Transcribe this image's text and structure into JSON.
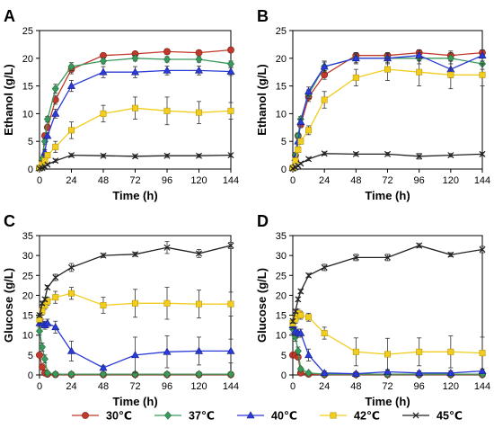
{
  "colors": {
    "30": "#c0392b",
    "37": "#3a9a5b",
    "40": "#2b3bd6",
    "42": "#f2cd1d",
    "45": "#222222"
  },
  "legend": [
    {
      "key": "30",
      "label": "30℃",
      "marker": "circle"
    },
    {
      "key": "37",
      "label": "37℃",
      "marker": "diamond"
    },
    {
      "key": "40",
      "label": "40℃",
      "marker": "triangle"
    },
    {
      "key": "42",
      "label": "42℃",
      "marker": "square"
    },
    {
      "key": "45",
      "label": "45℃",
      "marker": "x"
    }
  ],
  "chart_data": [
    {
      "type": "line",
      "panel": "A",
      "xlabel": "Time (h)",
      "ylabel": "Ethanol (g/L)",
      "xlim": [
        0,
        144
      ],
      "ylim": [
        0,
        25
      ],
      "xticks": [
        0,
        24,
        48,
        72,
        96,
        120,
        144
      ],
      "yticks": [
        0,
        5,
        10,
        15,
        20,
        25
      ],
      "x": [
        0,
        2,
        4,
        6,
        12,
        24,
        48,
        72,
        96,
        120,
        144
      ],
      "series": [
        {
          "key": "30",
          "name": "30℃",
          "values": [
            0.2,
            1.5,
            6.0,
            7.5,
            12.5,
            18.0,
            20.5,
            20.8,
            21.2,
            21.0,
            21.5
          ],
          "err": [
            0.1,
            0.3,
            0.5,
            0.5,
            0.8,
            0.8,
            0.3,
            0.4,
            0.5,
            0.4,
            0.3
          ]
        },
        {
          "key": "37",
          "name": "37℃",
          "values": [
            0.2,
            1.8,
            5.0,
            9.0,
            14.5,
            18.5,
            19.5,
            20.0,
            19.8,
            19.8,
            19.0
          ],
          "err": [
            0.1,
            0.3,
            0.5,
            0.5,
            0.8,
            0.7,
            0.5,
            0.5,
            0.5,
            0.5,
            0.5
          ]
        },
        {
          "key": "40",
          "name": "40℃",
          "values": [
            0.2,
            1.0,
            3.0,
            6.0,
            10.0,
            15.0,
            17.5,
            17.5,
            17.8,
            17.8,
            17.6
          ],
          "err": [
            0.1,
            0.3,
            0.5,
            0.5,
            0.8,
            1.0,
            1.0,
            1.0,
            0.8,
            0.8,
            0.7
          ]
        },
        {
          "key": "42",
          "name": "42℃",
          "values": [
            0.2,
            0.8,
            1.5,
            2.5,
            4.0,
            7.0,
            10.0,
            11.0,
            10.5,
            10.2,
            10.5
          ],
          "err": [
            0.1,
            0.3,
            0.5,
            0.5,
            1.0,
            1.5,
            1.5,
            2.0,
            2.5,
            2.0,
            1.5
          ]
        },
        {
          "key": "45",
          "name": "45℃",
          "values": [
            0.1,
            0.2,
            0.4,
            0.8,
            1.5,
            2.5,
            2.4,
            2.3,
            2.4,
            2.4,
            2.5
          ],
          "err": [
            0.1,
            0.1,
            0.2,
            0.2,
            0.3,
            0.3,
            0.3,
            0.3,
            0.3,
            0.3,
            0.3
          ]
        }
      ]
    },
    {
      "type": "line",
      "panel": "B",
      "xlabel": "Time (h)",
      "ylabel": "Ethanol (g/L)",
      "xlim": [
        0,
        144
      ],
      "ylim": [
        0,
        25
      ],
      "xticks": [
        0,
        24,
        48,
        72,
        96,
        120,
        144
      ],
      "yticks": [
        0,
        5,
        10,
        15,
        20,
        25
      ],
      "x": [
        0,
        2,
        4,
        6,
        12,
        24,
        48,
        72,
        96,
        120,
        144
      ],
      "series": [
        {
          "key": "30",
          "name": "30℃",
          "values": [
            0.2,
            2.5,
            6.0,
            8.0,
            13.0,
            17.0,
            20.5,
            20.5,
            21.0,
            20.5,
            21.0
          ],
          "err": [
            0.1,
            0.3,
            0.5,
            0.5,
            0.8,
            0.8,
            0.5,
            0.5,
            0.5,
            0.8,
            0.5
          ]
        },
        {
          "key": "37",
          "name": "37℃",
          "values": [
            0.2,
            2.5,
            6.0,
            9.0,
            13.5,
            18.5,
            20.0,
            20.0,
            20.0,
            20.0,
            19.0
          ],
          "err": [
            0.1,
            0.3,
            0.5,
            0.5,
            0.8,
            0.8,
            0.8,
            0.8,
            1.0,
            1.0,
            1.0
          ]
        },
        {
          "key": "40",
          "name": "40℃",
          "values": [
            0.2,
            2.0,
            5.0,
            8.5,
            14.0,
            18.5,
            20.0,
            20.0,
            20.5,
            18.0,
            20.5
          ],
          "err": [
            0.1,
            0.3,
            0.5,
            0.5,
            0.8,
            1.0,
            1.0,
            1.0,
            1.0,
            1.5,
            1.0
          ]
        },
        {
          "key": "42",
          "name": "42℃",
          "values": [
            0.2,
            1.5,
            3.5,
            5.0,
            7.0,
            12.5,
            16.5,
            18.0,
            17.5,
            17.0,
            17.0
          ],
          "err": [
            0.1,
            0.3,
            0.5,
            0.5,
            0.8,
            1.5,
            1.5,
            2.0,
            2.5,
            2.5,
            2.0
          ]
        },
        {
          "key": "45",
          "name": "45℃",
          "values": [
            0.1,
            0.3,
            0.6,
            1.0,
            1.8,
            2.8,
            2.7,
            2.7,
            2.3,
            2.5,
            2.7
          ],
          "err": [
            0.1,
            0.1,
            0.2,
            0.2,
            0.3,
            0.3,
            0.3,
            0.3,
            0.5,
            0.3,
            0.3
          ]
        }
      ]
    },
    {
      "type": "line",
      "panel": "C",
      "xlabel": "Time (h)",
      "ylabel": "Glucose (g/L)",
      "xlim": [
        0,
        144
      ],
      "ylim": [
        0,
        35
      ],
      "xticks": [
        0,
        24,
        48,
        72,
        96,
        120,
        144
      ],
      "yticks": [
        0,
        5,
        10,
        15,
        20,
        25,
        30,
        35
      ],
      "x": [
        0,
        2,
        4,
        6,
        12,
        24,
        48,
        72,
        96,
        120,
        144
      ],
      "series": [
        {
          "key": "30",
          "name": "30℃",
          "values": [
            5.0,
            2.0,
            0.5,
            0.2,
            0.1,
            0.1,
            0.1,
            0.1,
            0.1,
            0.1,
            0.1
          ],
          "err": [
            0.5,
            0.5,
            0.3,
            0.1,
            0.1,
            0.1,
            0.1,
            0.1,
            0.1,
            0.1,
            0.1
          ]
        },
        {
          "key": "37",
          "name": "37℃",
          "values": [
            11.0,
            7.0,
            4.0,
            0.5,
            0.2,
            0.2,
            0.2,
            0.2,
            0.2,
            0.2,
            0.2
          ],
          "err": [
            1.0,
            1.0,
            1.0,
            0.3,
            0.1,
            0.1,
            0.1,
            0.1,
            0.1,
            0.1,
            0.1
          ]
        },
        {
          "key": "40",
          "name": "40℃",
          "values": [
            13.0,
            13.0,
            12.5,
            13.0,
            12.0,
            6.0,
            1.8,
            5.0,
            5.8,
            6.0,
            6.0
          ],
          "err": [
            1.0,
            1.0,
            1.0,
            1.0,
            1.5,
            2.5,
            0.5,
            4.5,
            4.0,
            3.5,
            3.0
          ]
        },
        {
          "key": "42",
          "name": "42℃",
          "values": [
            14.0,
            16.0,
            17.5,
            18.5,
            19.5,
            20.5,
            17.5,
            18.0,
            18.0,
            17.8,
            17.8
          ],
          "err": [
            1.0,
            1.0,
            1.0,
            1.0,
            1.5,
            1.5,
            2.0,
            3.5,
            4.0,
            3.5,
            3.0
          ]
        },
        {
          "key": "45",
          "name": "45℃",
          "values": [
            15.0,
            18.0,
            19.0,
            22.0,
            24.5,
            27.0,
            30.0,
            30.3,
            32.0,
            30.5,
            32.5
          ],
          "err": [
            0.5,
            0.5,
            0.5,
            0.5,
            0.8,
            1.0,
            0.5,
            0.5,
            1.5,
            1.0,
            0.8
          ]
        }
      ]
    },
    {
      "type": "line",
      "panel": "D",
      "xlabel": "Time (h)",
      "ylabel": "Glucose (g/L)",
      "xlim": [
        0,
        144
      ],
      "ylim": [
        0,
        35
      ],
      "xticks": [
        0,
        24,
        48,
        72,
        96,
        120,
        144
      ],
      "yticks": [
        0,
        5,
        10,
        15,
        20,
        25,
        30,
        35
      ],
      "x": [
        0,
        2,
        4,
        6,
        12,
        24,
        48,
        72,
        96,
        120,
        144
      ],
      "series": [
        {
          "key": "30",
          "name": "30℃",
          "values": [
            5.0,
            5.0,
            4.5,
            0.5,
            0.2,
            0.1,
            0.1,
            0.1,
            0.1,
            0.1,
            0.1
          ],
          "err": [
            0.5,
            0.5,
            0.5,
            0.3,
            0.1,
            0.1,
            0.1,
            0.1,
            0.1,
            0.1,
            0.1
          ]
        },
        {
          "key": "37",
          "name": "37℃",
          "values": [
            11.5,
            9.5,
            6.0,
            1.5,
            0.5,
            0.2,
            0.2,
            0.2,
            0.2,
            0.2,
            0.2
          ],
          "err": [
            1.0,
            1.0,
            1.0,
            0.5,
            0.3,
            0.1,
            0.1,
            0.1,
            0.1,
            0.1,
            0.1
          ]
        },
        {
          "key": "40",
          "name": "40℃",
          "values": [
            12.5,
            11.0,
            10.5,
            10.5,
            5.0,
            0.5,
            0.3,
            0.8,
            0.5,
            0.5,
            1.0
          ],
          "err": [
            1.0,
            1.0,
            1.0,
            1.0,
            1.5,
            0.5,
            0.3,
            0.5,
            0.5,
            0.5,
            0.5
          ]
        },
        {
          "key": "42",
          "name": "42℃",
          "values": [
            13.0,
            14.0,
            15.5,
            15.0,
            14.5,
            10.5,
            5.8,
            5.2,
            5.8,
            5.8,
            5.5
          ],
          "err": [
            1.0,
            1.0,
            1.0,
            1.0,
            1.0,
            1.5,
            3.5,
            4.0,
            3.5,
            4.0,
            4.0
          ]
        },
        {
          "key": "45",
          "name": "45℃",
          "values": [
            13.5,
            16.0,
            19.0,
            21.0,
            25.0,
            27.0,
            29.5,
            29.5,
            32.5,
            30.2,
            31.5
          ],
          "err": [
            0.5,
            0.5,
            0.5,
            0.5,
            0.5,
            0.8,
            0.8,
            0.8,
            0.5,
            0.5,
            0.8
          ]
        }
      ]
    }
  ]
}
